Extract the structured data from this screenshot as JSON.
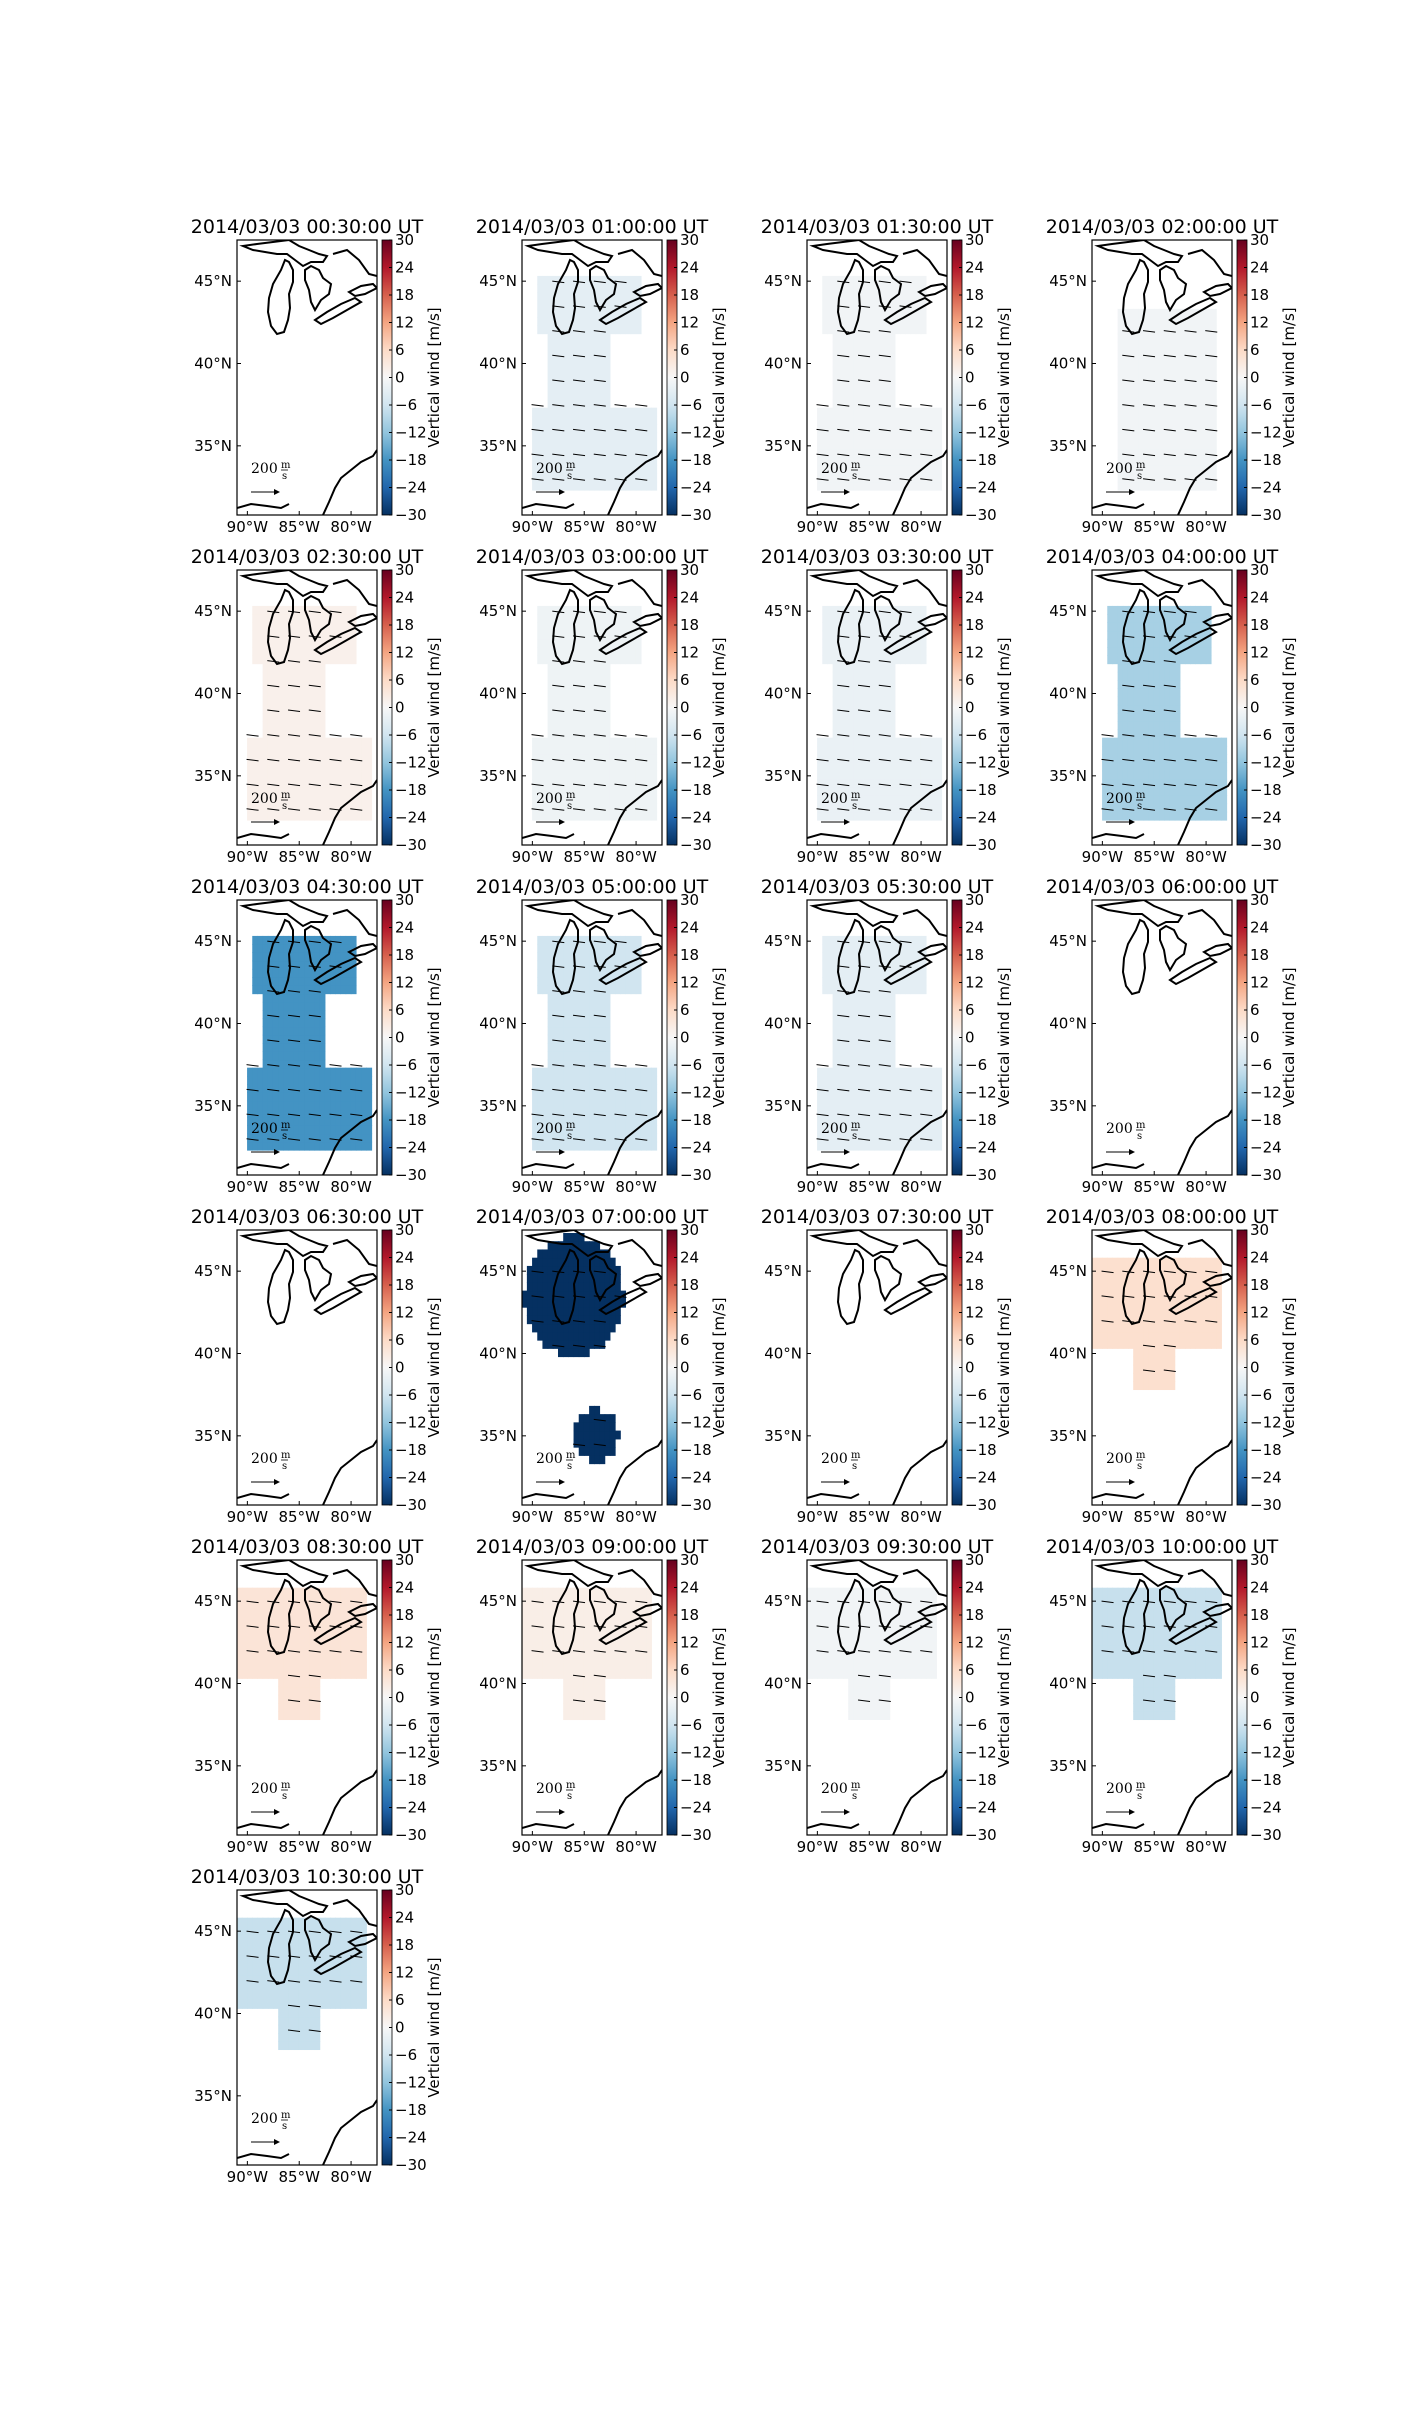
{
  "chart_data": {
    "type": "map-grid",
    "colorbar": {
      "label": "Vertical wind [m/s]",
      "min": -30,
      "max": 30,
      "ticks": [
        "30",
        "24",
        "18",
        "12",
        "6",
        "0",
        "−6",
        "−12",
        "−18",
        "−24",
        "−30"
      ],
      "colormap": "RdBu_r"
    },
    "x_ticks": [
      "90°W",
      "85°W",
      "80°W"
    ],
    "y_ticks": [
      "45°N",
      "40°N",
      "35°N"
    ],
    "scale_label": "200",
    "scale_unit_num": "m",
    "scale_unit_den": "s",
    "panels": [
      {
        "title": "2014/03/03 00:30:00 UT",
        "vw": null,
        "region": "none"
      },
      {
        "title": "2014/03/03 01:00:00 UT",
        "vw": -3,
        "region": "full"
      },
      {
        "title": "2014/03/03 01:30:00 UT",
        "vw": -1,
        "region": "full"
      },
      {
        "title": "2014/03/03 02:00:00 UT",
        "vw": -1,
        "region": "middle"
      },
      {
        "title": "2014/03/03 02:30:00 UT",
        "vw": 1.5,
        "region": "full"
      },
      {
        "title": "2014/03/03 03:00:00 UT",
        "vw": -1.5,
        "region": "full"
      },
      {
        "title": "2014/03/03 03:30:00 UT",
        "vw": -2,
        "region": "full"
      },
      {
        "title": "2014/03/03 04:00:00 UT",
        "vw": -10,
        "region": "full"
      },
      {
        "title": "2014/03/03 04:30:00 UT",
        "vw": -18,
        "region": "full"
      },
      {
        "title": "2014/03/03 05:00:00 UT",
        "vw": -6,
        "region": "full"
      },
      {
        "title": "2014/03/03 05:30:00 UT",
        "vw": -3,
        "region": "full"
      },
      {
        "title": "2014/03/03 06:00:00 UT",
        "vw": null,
        "region": "none"
      },
      {
        "title": "2014/03/03 06:30:00 UT",
        "vw": null,
        "region": "none"
      },
      {
        "title": "2014/03/03 07:00:00 UT",
        "vw": -30,
        "region": "split"
      },
      {
        "title": "2014/03/03 07:30:00 UT",
        "vw": null,
        "region": "none"
      },
      {
        "title": "2014/03/03 08:00:00 UT",
        "vw": 5,
        "region": "north"
      },
      {
        "title": "2014/03/03 08:30:00 UT",
        "vw": 4,
        "region": "north"
      },
      {
        "title": "2014/03/03 09:00:00 UT",
        "vw": 2,
        "region": "north"
      },
      {
        "title": "2014/03/03 09:30:00 UT",
        "vw": -1,
        "region": "north"
      },
      {
        "title": "2014/03/03 10:00:00 UT",
        "vw": -7,
        "region": "north"
      },
      {
        "title": "2014/03/03 10:30:00 UT",
        "vw": -7,
        "region": "north"
      }
    ]
  }
}
